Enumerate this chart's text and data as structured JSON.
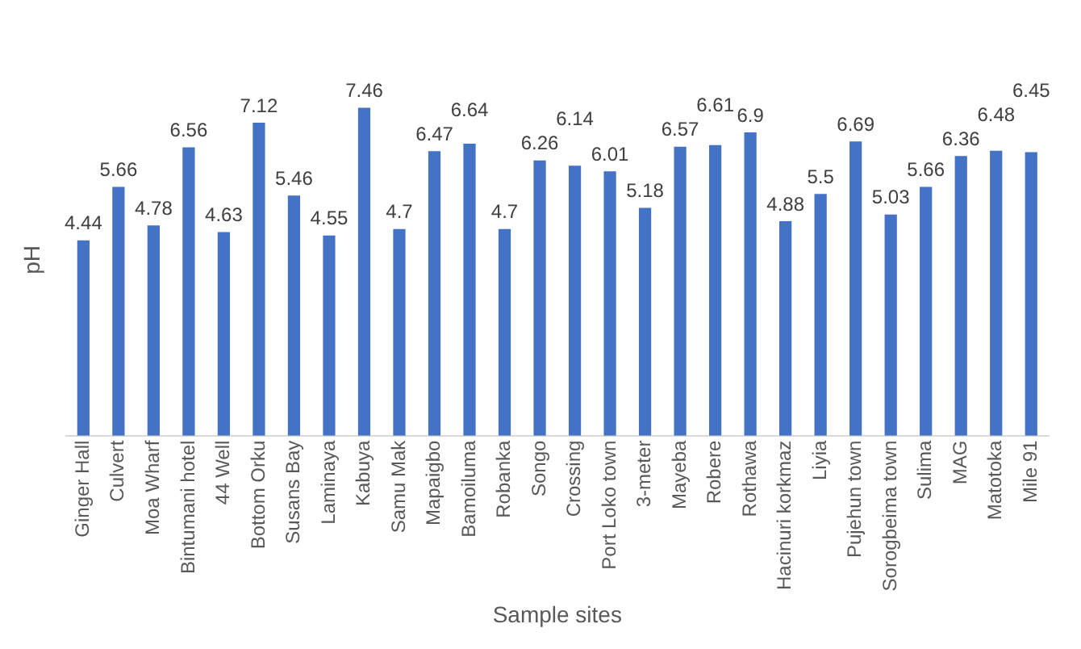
{
  "chart_data": {
    "type": "bar",
    "xlabel": "Sample sites",
    "ylabel": "pH",
    "categories": [
      "Ginger Hall",
      "Culvert",
      "Moa Wharf",
      "Bintumani hotel",
      "44 Well",
      "Bottom Orku",
      "Susans Bay",
      "Laminaya",
      "Kabuya",
      "Samu Mak",
      "Mapaigbo",
      "Bamoiluma",
      "Robanka",
      "Songo",
      "Crossing",
      "Port Loko town",
      "3-meter",
      "Mayeba",
      "Robere",
      "Rothawa",
      "Hacinuri korkmaz",
      "Liyia",
      "Pujehun town",
      "Sorogbeima town",
      "Sulima",
      "MAG",
      "Matotoka",
      "Mile 91"
    ],
    "values": [
      4.44,
      5.66,
      4.78,
      6.56,
      4.63,
      7.12,
      5.46,
      4.55,
      7.46,
      4.7,
      6.47,
      6.64,
      4.7,
      6.26,
      6.14,
      6.01,
      5.18,
      6.57,
      6.61,
      6.9,
      4.88,
      5.5,
      6.69,
      5.03,
      5.66,
      6.36,
      6.48,
      6.45
    ],
    "color": "#4472c4",
    "data_labels": true,
    "grid": false,
    "legend": false,
    "tick_labels": "x"
  }
}
